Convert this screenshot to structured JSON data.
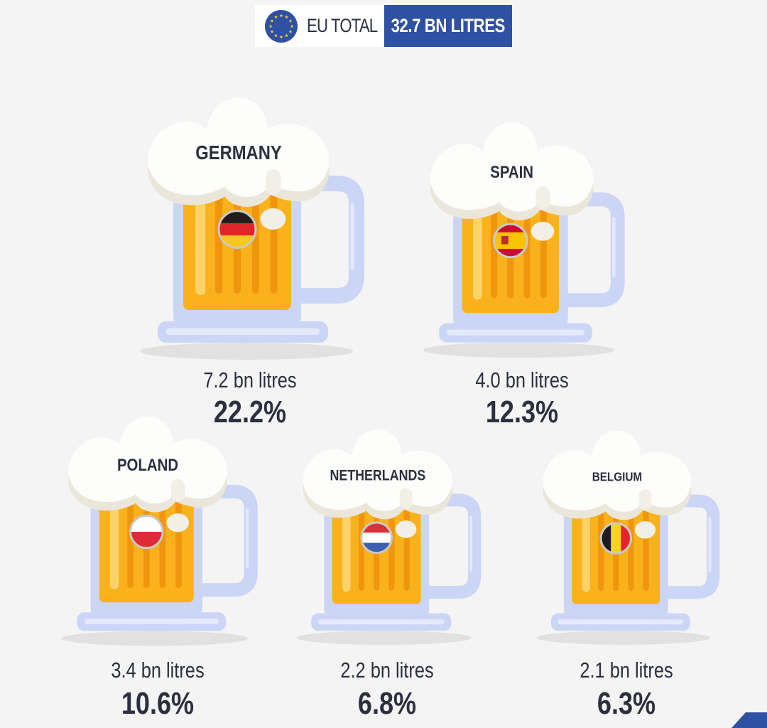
{
  "header": {
    "label": "EU TOTAL",
    "value": "32.7 BN LITRES",
    "icon": "eu-flag-icon"
  },
  "chart_data": {
    "type": "bar",
    "categories": [
      "GERMANY",
      "SPAIN",
      "POLAND",
      "NETHERLANDS",
      "BELGIUM"
    ],
    "values": [
      7.2,
      4.0,
      3.4,
      2.2,
      2.1
    ],
    "value_labels": [
      "7.2 bn litres",
      "4.0 bn litres",
      "3.4 bn litres",
      "2.2 bn litres",
      "2.1 bn litres"
    ],
    "shares": [
      22.2,
      12.3,
      10.6,
      6.8,
      6.3
    ],
    "share_labels": [
      "22.2%",
      "12.3%",
      "10.6%",
      "6.8%",
      "6.3%"
    ],
    "flags": [
      "germany-flag-icon",
      "spain-flag-icon",
      "poland-flag-icon",
      "netherlands-flag-icon",
      "belgium-flag-icon"
    ],
    "colors": {
      "beer": "#f9b21c",
      "beer_dark": "#f0950e",
      "foam": "#fdfdfb",
      "glass": "#cbd5f6",
      "accent": "#2f51a3",
      "text": "#2b2f3f"
    }
  }
}
